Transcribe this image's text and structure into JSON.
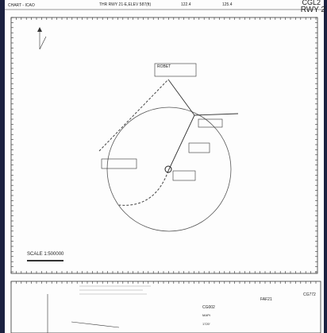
{
  "header": {
    "chart_type": "CHART - ICAO",
    "threshold": "THR RWY 21-E,ELEV 587(ft)",
    "freq_1": "122.4",
    "freq_2": "125.4",
    "procedure": "CGL2",
    "runway": "RWY 2"
  },
  "plan": {
    "scale": "SCALE 1:500000",
    "waypoints": [
      {
        "label": "ROBET"
      }
    ]
  },
  "profile": {
    "fixes": [
      {
        "label": "CG002",
        "type": "MAPt",
        "altitude": "1720'"
      },
      {
        "label": "FAF21"
      },
      {
        "label": "CG772"
      }
    ]
  }
}
